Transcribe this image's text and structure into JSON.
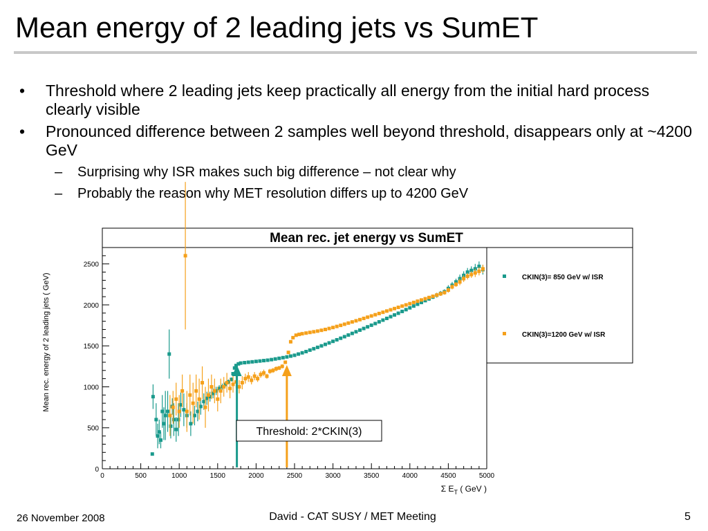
{
  "slide": {
    "title": "Mean energy of 2 leading jets vs SumET",
    "bullet_mark": "•",
    "dash_mark": "–",
    "bullets": [
      "Threshold where 2 leading jets keep practically all energy from the initial hard process clearly visible",
      "Pronounced difference between 2 samples well beyond threshold, disappears only at ~4200 GeV"
    ],
    "sub_bullets": [
      "Surprising why ISR makes such big difference – not clear why",
      "Probably the reason why MET resolution differs up to 4200 GeV"
    ]
  },
  "chart_data": {
    "type": "scatter",
    "title": "Mean rec. jet energy vs SumET",
    "ylabel": "Mean rec. energy of 2 leading jets ( GeV)",
    "xlabel": "Σ E_T ( GeV )",
    "xlim": [
      0,
      5000
    ],
    "ylim": [
      0,
      2700
    ],
    "x_ticks": [
      0,
      500,
      1000,
      1500,
      2000,
      2500,
      3000,
      3500,
      4000,
      4500,
      5000
    ],
    "y_ticks": [
      0,
      500,
      1000,
      1500,
      2000,
      2500
    ],
    "grid": false,
    "legend_position": "top-right",
    "series": [
      {
        "name": "CKIN(3)= 850 GeV w/ ISR",
        "color": "#1a9a8c",
        "points": [
          [
            650,
            180,
            0
          ],
          [
            660,
            880,
            150
          ],
          [
            700,
            600,
            200
          ],
          [
            720,
            400,
            150
          ],
          [
            740,
            450,
            150
          ],
          [
            760,
            350,
            100
          ],
          [
            780,
            700,
            200
          ],
          [
            800,
            550,
            200
          ],
          [
            820,
            650,
            300
          ],
          [
            850,
            700,
            250
          ],
          [
            870,
            1400,
            300
          ],
          [
            890,
            520,
            150
          ],
          [
            910,
            760,
            100
          ],
          [
            930,
            600,
            200
          ],
          [
            960,
            480,
            150
          ],
          [
            990,
            600,
            200
          ],
          [
            1020,
            780,
            150
          ],
          [
            1060,
            720,
            200
          ],
          [
            1100,
            650,
            150
          ],
          [
            1150,
            550,
            150
          ],
          [
            1200,
            650,
            120
          ],
          [
            1240,
            700,
            120
          ],
          [
            1280,
            760,
            100
          ],
          [
            1320,
            820,
            100
          ],
          [
            1360,
            860,
            80
          ],
          [
            1400,
            880,
            60
          ],
          [
            1440,
            920,
            60
          ],
          [
            1480,
            950,
            50
          ],
          [
            1520,
            980,
            40
          ],
          [
            1560,
            1000,
            40
          ],
          [
            1600,
            1030,
            30
          ],
          [
            1640,
            1060,
            30
          ],
          [
            1680,
            1090,
            25
          ],
          [
            1700,
            1160,
            20
          ],
          [
            1720,
            1230,
            20
          ],
          [
            1740,
            1260,
            15
          ],
          [
            1770,
            1280,
            15
          ],
          [
            1800,
            1290,
            0
          ],
          [
            1850,
            1295,
            0
          ],
          [
            1900,
            1300,
            0
          ],
          [
            1950,
            1305,
            0
          ],
          [
            2000,
            1310,
            0
          ],
          [
            2050,
            1315,
            0
          ],
          [
            2100,
            1320,
            0
          ],
          [
            2150,
            1325,
            0
          ],
          [
            2200,
            1332,
            0
          ],
          [
            2250,
            1340,
            0
          ],
          [
            2300,
            1348,
            0
          ],
          [
            2350,
            1356,
            0
          ],
          [
            2400,
            1365,
            0
          ],
          [
            2450,
            1375,
            0
          ],
          [
            2500,
            1385,
            0
          ],
          [
            2550,
            1400,
            0
          ],
          [
            2600,
            1415,
            0
          ],
          [
            2650,
            1430,
            0
          ],
          [
            2700,
            1448,
            0
          ],
          [
            2750,
            1465,
            0
          ],
          [
            2800,
            1482,
            0
          ],
          [
            2850,
            1500,
            0
          ],
          [
            2900,
            1518,
            0
          ],
          [
            2950,
            1536,
            0
          ],
          [
            3000,
            1555,
            0
          ],
          [
            3050,
            1574,
            0
          ],
          [
            3100,
            1593,
            0
          ],
          [
            3150,
            1612,
            0
          ],
          [
            3200,
            1632,
            0
          ],
          [
            3250,
            1652,
            0
          ],
          [
            3300,
            1672,
            0
          ],
          [
            3350,
            1692,
            0
          ],
          [
            3400,
            1712,
            0
          ],
          [
            3450,
            1732,
            0
          ],
          [
            3500,
            1752,
            0
          ],
          [
            3550,
            1772,
            0
          ],
          [
            3600,
            1793,
            0
          ],
          [
            3650,
            1814,
            0
          ],
          [
            3700,
            1835,
            0
          ],
          [
            3750,
            1856,
            0
          ],
          [
            3800,
            1877,
            0
          ],
          [
            3850,
            1898,
            0
          ],
          [
            3900,
            1920,
            0
          ],
          [
            3950,
            1942,
            0
          ],
          [
            4000,
            1964,
            0
          ],
          [
            4050,
            1986,
            0
          ],
          [
            4100,
            2008,
            20
          ],
          [
            4150,
            2030,
            20
          ],
          [
            4200,
            2052,
            20
          ],
          [
            4250,
            2074,
            25
          ],
          [
            4300,
            2096,
            25
          ],
          [
            4350,
            2118,
            30
          ],
          [
            4400,
            2140,
            30
          ],
          [
            4450,
            2160,
            30
          ],
          [
            4500,
            2200,
            40
          ],
          [
            4550,
            2240,
            40
          ],
          [
            4600,
            2280,
            40
          ],
          [
            4650,
            2320,
            50
          ],
          [
            4700,
            2360,
            50
          ],
          [
            4750,
            2400,
            50
          ],
          [
            4800,
            2420,
            50
          ],
          [
            4850,
            2440,
            60
          ],
          [
            4900,
            2470,
            60
          ],
          [
            4950,
            2430,
            60
          ]
        ]
      },
      {
        "name": "CKIN(3)=1200 GeV w/ ISR",
        "color": "#f5a01a",
        "points": [
          [
            880,
            650,
            250
          ],
          [
            920,
            750,
            200
          ],
          [
            960,
            850,
            200
          ],
          [
            1000,
            700,
            200
          ],
          [
            1040,
            950,
            200
          ],
          [
            1080,
            2600,
            900
          ],
          [
            1100,
            700,
            250
          ],
          [
            1140,
            900,
            250
          ],
          [
            1180,
            800,
            250
          ],
          [
            1220,
            950,
            200
          ],
          [
            1260,
            850,
            250
          ],
          [
            1300,
            1050,
            200
          ],
          [
            1340,
            750,
            250
          ],
          [
            1380,
            900,
            200
          ],
          [
            1420,
            1000,
            150
          ],
          [
            1460,
            950,
            150
          ],
          [
            1500,
            850,
            150
          ],
          [
            1540,
            950,
            150
          ],
          [
            1580,
            1000,
            120
          ],
          [
            1620,
            1050,
            120
          ],
          [
            1660,
            980,
            120
          ],
          [
            1700,
            1030,
            100
          ],
          [
            1740,
            1060,
            80
          ],
          [
            1780,
            1000,
            80
          ],
          [
            1820,
            1050,
            80
          ],
          [
            1860,
            1100,
            60
          ],
          [
            1900,
            1120,
            60
          ],
          [
            1940,
            1080,
            50
          ],
          [
            1980,
            1130,
            50
          ],
          [
            2020,
            1100,
            40
          ],
          [
            2060,
            1150,
            40
          ],
          [
            2100,
            1170,
            40
          ],
          [
            2140,
            1130,
            30
          ],
          [
            2180,
            1190,
            30
          ],
          [
            2220,
            1200,
            30
          ],
          [
            2260,
            1220,
            30
          ],
          [
            2300,
            1230,
            25
          ],
          [
            2340,
            1250,
            25
          ],
          [
            2380,
            1300,
            20
          ],
          [
            2420,
            1420,
            20
          ],
          [
            2450,
            1550,
            20
          ],
          [
            2480,
            1600,
            15
          ],
          [
            2520,
            1630,
            15
          ],
          [
            2560,
            1640,
            0
          ],
          [
            2600,
            1648,
            0
          ],
          [
            2650,
            1656,
            0
          ],
          [
            2700,
            1664,
            0
          ],
          [
            2750,
            1672,
            0
          ],
          [
            2800,
            1680,
            0
          ],
          [
            2850,
            1690,
            0
          ],
          [
            2900,
            1700,
            0
          ],
          [
            2950,
            1712,
            0
          ],
          [
            3000,
            1724,
            0
          ],
          [
            3050,
            1737,
            0
          ],
          [
            3100,
            1750,
            0
          ],
          [
            3150,
            1764,
            0
          ],
          [
            3200,
            1778,
            0
          ],
          [
            3250,
            1792,
            0
          ],
          [
            3300,
            1806,
            0
          ],
          [
            3350,
            1820,
            0
          ],
          [
            3400,
            1835,
            0
          ],
          [
            3450,
            1850,
            0
          ],
          [
            3500,
            1865,
            0
          ],
          [
            3550,
            1880,
            0
          ],
          [
            3600,
            1895,
            0
          ],
          [
            3650,
            1910,
            0
          ],
          [
            3700,
            1925,
            0
          ],
          [
            3750,
            1940,
            0
          ],
          [
            3800,
            1955,
            0
          ],
          [
            3850,
            1970,
            0
          ],
          [
            3900,
            1985,
            0
          ],
          [
            3950,
            2000,
            0
          ],
          [
            4000,
            2015,
            0
          ],
          [
            4050,
            2030,
            0
          ],
          [
            4100,
            2045,
            0
          ],
          [
            4150,
            2060,
            0
          ],
          [
            4200,
            2075,
            0
          ],
          [
            4250,
            2090,
            20
          ],
          [
            4300,
            2105,
            20
          ],
          [
            4350,
            2120,
            25
          ],
          [
            4400,
            2135,
            25
          ],
          [
            4450,
            2150,
            25
          ],
          [
            4500,
            2180,
            30
          ],
          [
            4550,
            2220,
            30
          ],
          [
            4600,
            2250,
            30
          ],
          [
            4650,
            2280,
            40
          ],
          [
            4700,
            2320,
            40
          ],
          [
            4750,
            2350,
            40
          ],
          [
            4800,
            2370,
            40
          ],
          [
            4850,
            2390,
            50
          ],
          [
            4900,
            2410,
            50
          ],
          [
            4950,
            2440,
            50
          ]
        ]
      }
    ],
    "annotation": {
      "text": "Threshold: 2*CKIN(3)",
      "arrows": [
        {
          "x": 1750,
          "color": "#1a9a8c"
        },
        {
          "x": 2400,
          "color": "#f5a01a"
        }
      ]
    }
  },
  "footer": {
    "date": "26 November 2008",
    "center": "David - CAT SUSY / MET Meeting",
    "page": "5"
  }
}
